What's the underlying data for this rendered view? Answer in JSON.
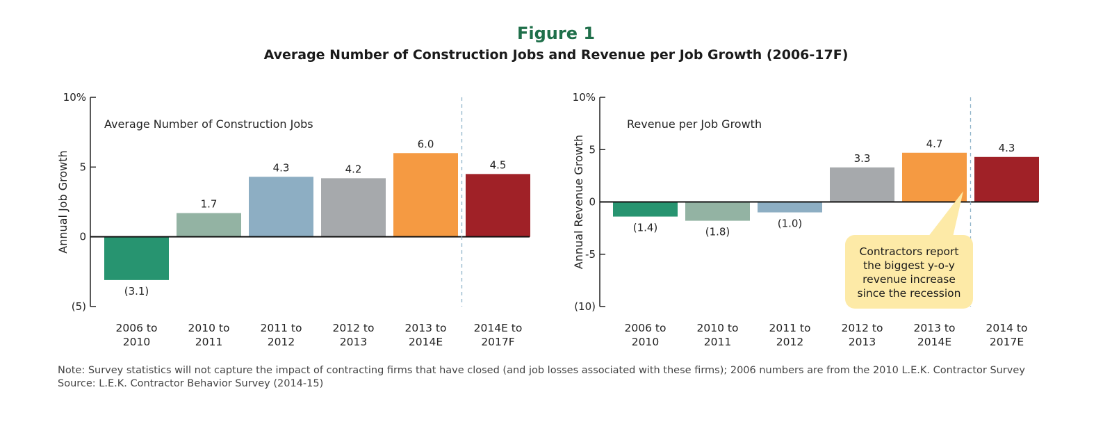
{
  "figure": {
    "label": "Figure 1",
    "title": "Average Number of Construction Jobs and Revenue per Job Growth (2006-17F)"
  },
  "chart_data": [
    {
      "type": "bar",
      "title": "Average Number of Construction Jobs",
      "ylabel": "Annual Job Growth",
      "xlabel": "",
      "ylim": [
        -5,
        10
      ],
      "yticks": [
        -5,
        0,
        5,
        10
      ],
      "ytick_labels": [
        "(5)",
        "0",
        "5",
        "10%"
      ],
      "categories": [
        "2006 to\n2010",
        "2010 to\n2011",
        "2011 to\n2012",
        "2012 to\n2013",
        "2013 to\n2014E",
        "2014E to\n2017F"
      ],
      "values": [
        -3.1,
        1.7,
        4.3,
        4.2,
        6.0,
        4.5
      ],
      "value_labels": [
        "(3.1)",
        "1.7",
        "4.3",
        "4.2",
        "6.0",
        "4.5"
      ],
      "colors": [
        "#279470",
        "#93b3a3",
        "#8daec3",
        "#a6a9ac",
        "#f59a42",
        "#a02127"
      ],
      "forecast_divider_after_index": 4,
      "grid": false
    },
    {
      "type": "bar",
      "title": "Revenue per Job Growth",
      "ylabel": "Annual Revenue Growth",
      "xlabel": "",
      "ylim": [
        -10,
        10
      ],
      "yticks": [
        -10,
        -5,
        0,
        5,
        10
      ],
      "ytick_labels": [
        "(10)",
        "-5",
        "0",
        "5",
        "10%"
      ],
      "categories": [
        "2006 to\n2010",
        "2010 to\n2011",
        "2011 to\n2012",
        "2012 to\n2013",
        "2013 to\n2014E",
        "2014 to\n2017E"
      ],
      "values": [
        -1.4,
        -1.8,
        -1.0,
        3.3,
        4.7,
        4.3
      ],
      "value_labels": [
        "(1.4)",
        "(1.8)",
        "(1.0)",
        "3.3",
        "4.7",
        "4.3"
      ],
      "colors": [
        "#279470",
        "#93b3a3",
        "#8daec3",
        "#a6a9ac",
        "#f59a42",
        "#a02127"
      ],
      "forecast_divider_after_index": 4,
      "grid": false,
      "annotation": "Contractors report\nthe biggest y-o-y\nrevenue increase\nsince the recession"
    }
  ],
  "notes": {
    "note": "Note: Survey statistics will not capture the impact of contracting firms that have closed (and job losses associated with these firms); 2006 numbers are from the 2010 L.E.K. Contractor Survey",
    "source": "Source: L.E.K. Contractor Behavior Survey (2014-15)"
  }
}
